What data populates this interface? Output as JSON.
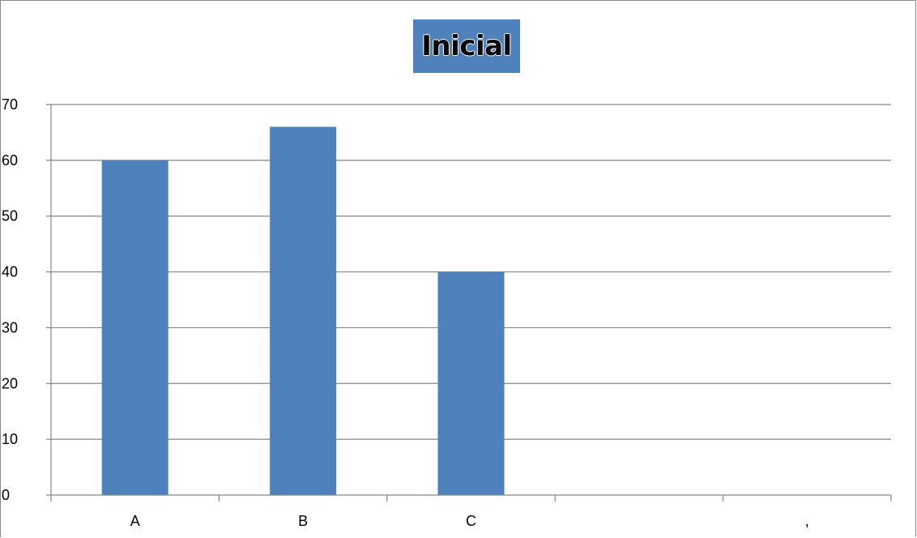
{
  "chart_data": {
    "type": "bar",
    "title": "Inicial",
    "categories": [
      "A",
      "B",
      "C",
      "",
      ","
    ],
    "values": [
      60,
      66,
      40,
      null,
      null
    ],
    "ylim": [
      0,
      70
    ],
    "yticks": [
      0,
      10,
      20,
      30,
      40,
      50,
      60,
      70
    ],
    "grid": true,
    "legend": "none"
  },
  "colors": {
    "bar": "#4f81bd",
    "grid": "#868686",
    "title_bg": "#4f81bd"
  }
}
